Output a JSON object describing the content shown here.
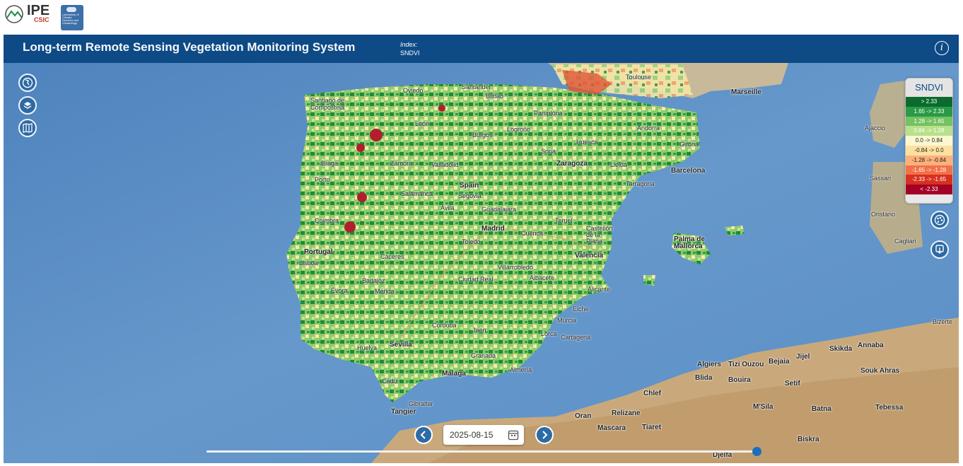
{
  "logos": {
    "ipe_word": "IPE",
    "ipe_sub": "CSIC",
    "lab_text": "Laboratory of Climate Services and Climatology"
  },
  "header": {
    "title": "Long-term Remote Sensing Vegetation Monitoring System",
    "index_label": "Index:",
    "index_value": "SNDVI",
    "info_icon": "info-icon"
  },
  "map_controls": [
    "globe-icon",
    "layers-icon",
    "map-icon"
  ],
  "right_controls": [
    "palette-icon",
    "download-icon"
  ],
  "legend": {
    "title": "SNDVI",
    "items": [
      {
        "label": "> 2.33",
        "color": "#0b6b2e",
        "text_color": "#ffffff"
      },
      {
        "label": "1.65 -> 2.33",
        "color": "#2a9a46",
        "text_color": "#ffffff"
      },
      {
        "label": "1.28 -> 1.65",
        "color": "#74c262",
        "text_color": "#ffffff"
      },
      {
        "label": "0.84 -> 1.28",
        "color": "#b9e08a",
        "text_color": "#ffffff"
      },
      {
        "label": "0.0 -> 0.84",
        "color": "#fbf7d0",
        "text_color": "#222222"
      },
      {
        "label": "-0.84 -> 0.0",
        "color": "#fde0a0",
        "text_color": "#222222"
      },
      {
        "label": "-1.28 -> -0.84",
        "color": "#fcb07a",
        "text_color": "#222222"
      },
      {
        "label": "-1.65 -> -1.28",
        "color": "#f27048",
        "text_color": "#ffffff"
      },
      {
        "label": "-2.33 -> -1.65",
        "color": "#d7301f",
        "text_color": "#ffffff"
      },
      {
        "label": "< -2.33",
        "color": "#a50026",
        "text_color": "#ffffff"
      }
    ]
  },
  "date_control": {
    "value": "2025-08-15",
    "prev_icon": "chevron-left-icon",
    "next_icon": "chevron-right-icon",
    "calendar_icon": "calendar-icon",
    "timeline_position": 1.0
  },
  "map_labels": {
    "spain": "Spain",
    "portugal": "Portugal",
    "madrid": "Madrid",
    "barcelona": "Barcelona",
    "valencia": "Valencia",
    "zaragoza": "Zaragoza",
    "sevilla": "Sevilla",
    "malaga": "Malaga",
    "granada": "Granada",
    "bilbao": "Bilbao",
    "santander": "Santander",
    "oviedo": "Oviedo",
    "santiago": "Santiago de Compostela",
    "logrono": "Logroño",
    "burgos": "Burgos",
    "valladolid": "Valladolid",
    "salamanca": "Salamanca",
    "toledo": "Toledo",
    "cuenca": "Cuenca",
    "albacete": "Albacete",
    "murcia": "Murcia",
    "elche": "Elche",
    "almeria": "Almería",
    "cordoba": "Córdoba",
    "jaen": "Jaén",
    "cadiz": "Cádiz",
    "gibraltar": "Gibraltar",
    "tangier": "Tangier",
    "oran": "Oran",
    "algiers": "Algiers",
    "palma": "Palma de Mallorca",
    "marseille": "Marseille",
    "toulouse": "Toulouse",
    "andorra": "Andorra",
    "cagliari": "Cagliari",
    "ajaccio": "Ajaccio",
    "blida": "Blida",
    "bouira": "Bouira",
    "setif": "Setif",
    "batna": "Batna",
    "tebessa": "Tebessa",
    "annaba": "Annaba",
    "souk_ahras": "Souk Ahras",
    "biskra": "Biskra",
    "msila": "M'Sila",
    "tiaret": "Tiaret",
    "mascara": "Mascara",
    "relizane": "Relizane",
    "chlef": "Chlef",
    "bejaia": "Bejaia",
    "jijel": "Jijel",
    "skikda": "Skikda",
    "tizi_ouzou": "Tizi Ouzou",
    "djelfa": "Djelfa",
    "ciudad_real": "Ciudad Real",
    "villarrobledo": "Villarrobledo",
    "tarragona": "Tarragona",
    "huesca": "Huesca",
    "pamplona": "Pamplona",
    "leon": "León",
    "braga": "Braga",
    "porto": "Porto",
    "coimbra": "Coimbra",
    "lisboa": "Lisboa",
    "evora": "Évora",
    "badajoz": "Badajoz",
    "huelva": "Huelva",
    "segovia": "Segovia",
    "avila": "Ávila",
    "guadalajara": "Guadalajara",
    "teruel": "Teruel",
    "castellon": "Castellón de la Plana",
    "girona": "Girona",
    "lleida": "Lleida",
    "soria": "Soria",
    "zamora": "Zamora",
    "caceres": "Cáceres",
    "merida": "Mérida",
    "lorca": "Lorca",
    "cartagena": "Cartagena",
    "alicante": "Alicante",
    "bizerte": "Bizerte",
    "sassari": "Sassari",
    "oristano": "Oristano"
  }
}
